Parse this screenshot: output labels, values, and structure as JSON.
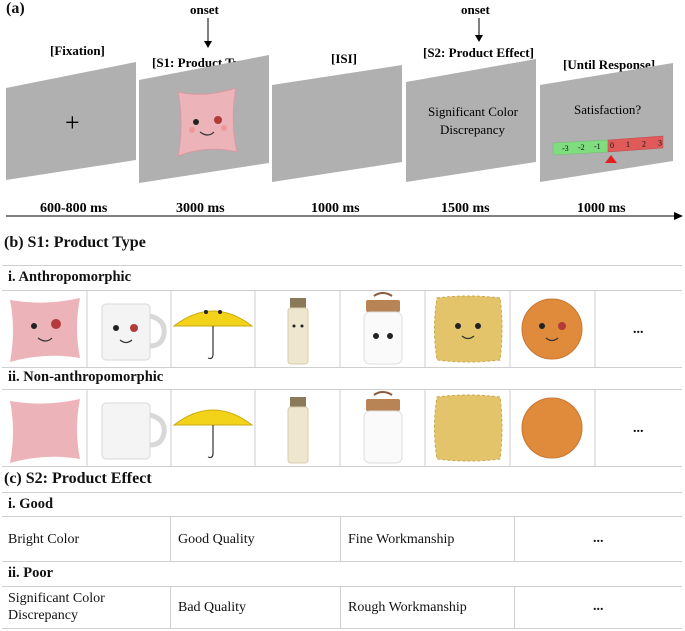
{
  "panel_a": {
    "label": "(a)",
    "onset_label": "onset",
    "screens": [
      {
        "title": "[Fixation]",
        "content": "+",
        "duration": "600-800 ms"
      },
      {
        "title": "[S1: Product Type]",
        "content": "",
        "duration": "3000 ms"
      },
      {
        "title": "[ISI]",
        "content": "",
        "duration": "1000 ms"
      },
      {
        "title": "[S2: Product Effect]",
        "content_line1": "Significant Color",
        "content_line2": "Discrepancy",
        "duration": "1500 ms"
      },
      {
        "title": "[Until Response]",
        "content": "Satisfaction?",
        "duration": "1000 ms"
      }
    ],
    "scale": [
      "-3",
      "-2",
      "-1",
      "0",
      "1",
      "2",
      "3"
    ]
  },
  "panel_b": {
    "title": "(b) S1: Product Type",
    "row1_label": "i. Anthropomorphic",
    "row2_label": "ii. Non-anthropomorphic",
    "products": [
      "pillow",
      "mug",
      "umbrella",
      "bottle",
      "jar",
      "frilled-pillow",
      "round-pillow"
    ],
    "ellipsis": "..."
  },
  "panel_c": {
    "title": "(c) S2: Product Effect",
    "good_label": "i. Good",
    "poor_label": "ii. Poor",
    "good": [
      "Bright Color",
      "Good Quality",
      "Fine Workmanship",
      "..."
    ],
    "poor_line1": "Significant Color",
    "poor_line2": "Discrepancy",
    "poor": [
      "Bad Quality",
      "Rough Workmanship",
      "..."
    ]
  }
}
